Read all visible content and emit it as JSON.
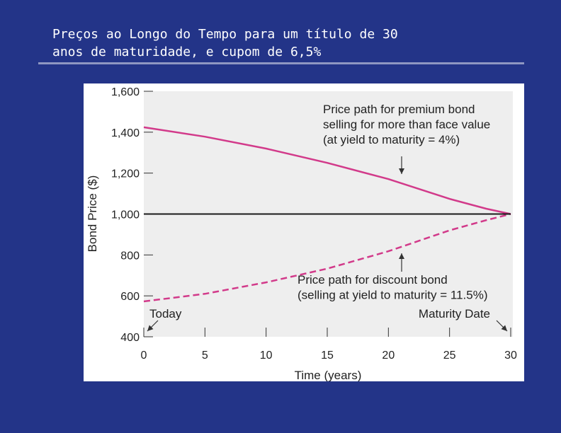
{
  "slide": {
    "title_line1": "Preços ao Longo do Tempo para um título de 30",
    "title_line2": "anos de maturidade, e cupom de 6,5%"
  },
  "colors": {
    "background": "#233488",
    "series": "#d23a8a",
    "face_value_line": "#1a1a1a",
    "plot_area": "#eeeeee"
  },
  "chart_data": {
    "type": "line",
    "title": "",
    "xlabel": "Time (years)",
    "ylabel": "Bond Price ($)",
    "xlim": [
      0,
      30
    ],
    "ylim": [
      400,
      1600
    ],
    "xticks": [
      0,
      5,
      10,
      15,
      20,
      25,
      30
    ],
    "yticks": [
      400,
      600,
      800,
      1000,
      1200,
      1400,
      1600
    ],
    "ytick_labels": [
      "400",
      "600",
      "800",
      "1,000",
      "1,200",
      "1,400",
      "1,600"
    ],
    "grid": false,
    "series": [
      {
        "id": "premium",
        "style": "solid",
        "x": [
          0,
          5,
          10,
          15,
          20,
          25,
          28,
          30
        ],
        "y": [
          1424,
          1378,
          1320,
          1250,
          1171,
          1074,
          1026,
          1000
        ]
      },
      {
        "id": "discount",
        "style": "dashed",
        "x": [
          0,
          5,
          10,
          15,
          20,
          25,
          28,
          30
        ],
        "y": [
          573,
          610,
          666,
          733,
          818,
          920,
          970,
          1000
        ]
      },
      {
        "id": "face-value",
        "style": "solid",
        "x": [
          0,
          30
        ],
        "y": [
          1000,
          1000
        ]
      }
    ],
    "annotations": {
      "premium": [
        "Price path for premium bond",
        "selling for more than face value",
        "(at yield to maturity = 4%)"
      ],
      "discount": [
        "Price path for discount bond",
        "(selling at yield to maturity = 11.5%)"
      ],
      "today": "Today",
      "maturity": "Maturity Date"
    }
  }
}
